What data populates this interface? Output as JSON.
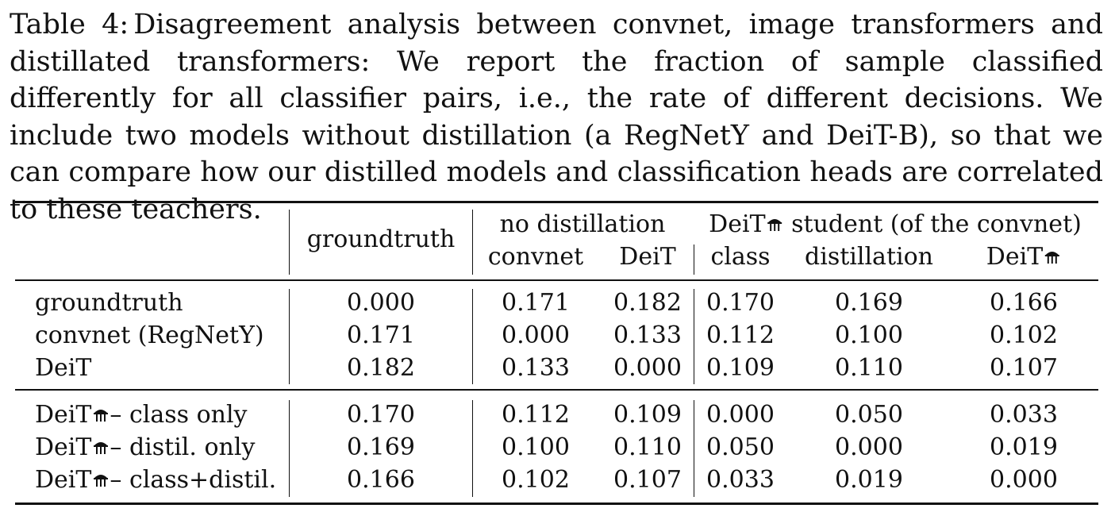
{
  "caption": {
    "label": "Table 4:",
    "text": "Disagreement analysis between convnet, image transformers and distillated transformers: We report the fraction of sample classified differently for all classifier pairs, i.e., the rate of different decisions. We include two models without distillation (a RegNetY and DeiT-B), so that we can compare how our distilled models and classification heads are correlated to these teachers."
  },
  "table": {
    "headers": {
      "groundtruth": "groundtruth",
      "no_distillation": "no distillation",
      "convnet": "convnet",
      "deit": "DeiT",
      "student_prefix": "DeiT",
      "student_suffix": "student (of the convnet)",
      "class": "class",
      "distillation": "distillation",
      "deit_distilled": "DeiT"
    },
    "rows_group1": [
      {
        "label": "groundtruth",
        "values": [
          "0.000",
          "0.171",
          "0.182",
          "0.170",
          "0.169",
          "0.166"
        ]
      },
      {
        "label": "convnet (RegNetY)",
        "values": [
          "0.171",
          "0.000",
          "0.133",
          "0.112",
          "0.100",
          "0.102"
        ]
      },
      {
        "label": "DeiT",
        "values": [
          "0.182",
          "0.133",
          "0.000",
          "0.109",
          "0.110",
          "0.107"
        ]
      }
    ],
    "rows_group2": [
      {
        "label_prefix": "DeiT",
        "label_suffix": "– class only",
        "values": [
          "0.170",
          "0.112",
          "0.109",
          "0.000",
          "0.050",
          "0.033"
        ]
      },
      {
        "label_prefix": "DeiT",
        "label_suffix": "– distil. only",
        "values": [
          "0.169",
          "0.100",
          "0.110",
          "0.050",
          "0.000",
          "0.019"
        ]
      },
      {
        "label_prefix": "DeiT",
        "label_suffix": "– class+distil.",
        "values": [
          "0.166",
          "0.102",
          "0.107",
          "0.033",
          "0.019",
          "0.000"
        ]
      }
    ]
  },
  "icons": {
    "distill_symbol": "alembic-icon"
  }
}
